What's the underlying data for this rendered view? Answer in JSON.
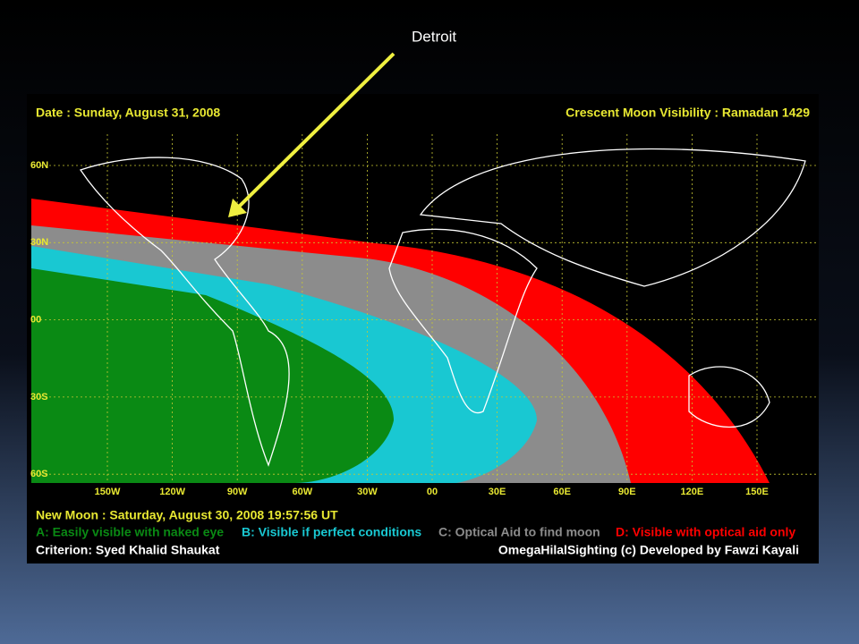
{
  "callout": "Detroit",
  "header": {
    "date": "Date : Sunday, August 31, 2008",
    "title": "Crescent Moon Visibility : Ramadan  1429"
  },
  "latitudes": [
    "60N",
    "30N",
    "00",
    "30S",
    "60S"
  ],
  "longitudes": [
    "150W",
    "120W",
    "90W",
    "60W",
    "30W",
    "00",
    "30E",
    "60E",
    "90E",
    "120E",
    "150E"
  ],
  "footer": {
    "new_moon": "New Moon : Saturday, August 30, 2008  19:57:56  UT",
    "legend": [
      "A: Easily visible with naked eye",
      "B: Visible if perfect conditions",
      "C: Optical Aid to find moon",
      "D: Visible with optical aid only"
    ],
    "criterion": "Criterion: Syed Khalid Shaukat",
    "credit": "OmegaHilalSighting  (c)  Developed by Fawzi Kayali"
  }
}
